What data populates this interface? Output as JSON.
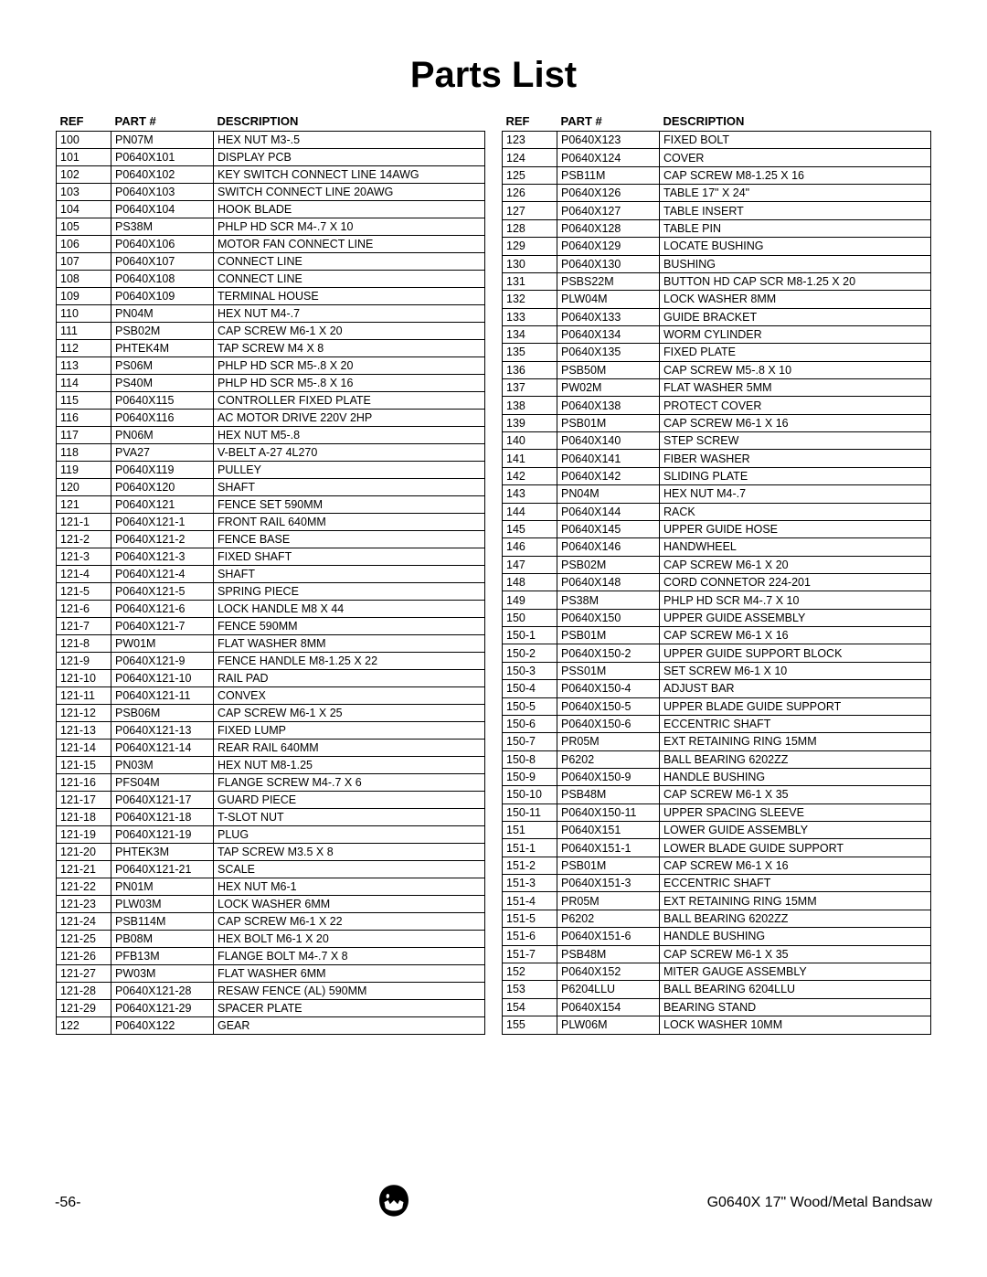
{
  "title": "Parts List",
  "headers": {
    "ref": "REF",
    "part": "PART #",
    "desc": "DESCRIPTION"
  },
  "left": [
    {
      "ref": "100",
      "part": "PN07M",
      "desc": "HEX NUT M3-.5"
    },
    {
      "ref": "101",
      "part": "P0640X101",
      "desc": "DISPLAY PCB"
    },
    {
      "ref": "102",
      "part": "P0640X102",
      "desc": "KEY SWITCH CONNECT LINE 14AWG"
    },
    {
      "ref": "103",
      "part": "P0640X103",
      "desc": "SWITCH CONNECT LINE 20AWG"
    },
    {
      "ref": "104",
      "part": "P0640X104",
      "desc": "HOOK BLADE"
    },
    {
      "ref": "105",
      "part": "PS38M",
      "desc": "PHLP HD SCR M4-.7 X 10"
    },
    {
      "ref": "106",
      "part": "P0640X106",
      "desc": "MOTOR FAN CONNECT LINE"
    },
    {
      "ref": "107",
      "part": "P0640X107",
      "desc": "CONNECT LINE"
    },
    {
      "ref": "108",
      "part": "P0640X108",
      "desc": "CONNECT LINE"
    },
    {
      "ref": "109",
      "part": "P0640X109",
      "desc": "TERMINAL HOUSE"
    },
    {
      "ref": "110",
      "part": "PN04M",
      "desc": "HEX NUT M4-.7"
    },
    {
      "ref": "111",
      "part": "PSB02M",
      "desc": "CAP SCREW M6-1 X 20"
    },
    {
      "ref": "112",
      "part": "PHTEK4M",
      "desc": "TAP SCREW M4 X 8"
    },
    {
      "ref": "113",
      "part": "PS06M",
      "desc": "PHLP HD SCR M5-.8 X 20"
    },
    {
      "ref": "114",
      "part": "PS40M",
      "desc": "PHLP HD SCR M5-.8 X 16"
    },
    {
      "ref": "115",
      "part": "P0640X115",
      "desc": "CONTROLLER FIXED PLATE"
    },
    {
      "ref": "116",
      "part": "P0640X116",
      "desc": "AC MOTOR DRIVE 220V 2HP"
    },
    {
      "ref": "117",
      "part": "PN06M",
      "desc": "HEX NUT M5-.8"
    },
    {
      "ref": "118",
      "part": "PVA27",
      "desc": "V-BELT A-27 4L270"
    },
    {
      "ref": "119",
      "part": "P0640X119",
      "desc": "PULLEY"
    },
    {
      "ref": "120",
      "part": "P0640X120",
      "desc": "SHAFT"
    },
    {
      "ref": "121",
      "part": "P0640X121",
      "desc": "FENCE SET 590MM"
    },
    {
      "ref": "121-1",
      "part": "P0640X121-1",
      "desc": "FRONT RAIL 640MM"
    },
    {
      "ref": "121-2",
      "part": "P0640X121-2",
      "desc": "FENCE BASE"
    },
    {
      "ref": "121-3",
      "part": "P0640X121-3",
      "desc": "FIXED SHAFT"
    },
    {
      "ref": "121-4",
      "part": "P0640X121-4",
      "desc": "SHAFT"
    },
    {
      "ref": "121-5",
      "part": "P0640X121-5",
      "desc": "SPRING PIECE"
    },
    {
      "ref": "121-6",
      "part": "P0640X121-6",
      "desc": "LOCK HANDLE M8 X 44"
    },
    {
      "ref": "121-7",
      "part": "P0640X121-7",
      "desc": "FENCE 590MM"
    },
    {
      "ref": "121-8",
      "part": "PW01M",
      "desc": "FLAT WASHER 8MM"
    },
    {
      "ref": "121-9",
      "part": "P0640X121-9",
      "desc": "FENCE HANDLE M8-1.25 X 22"
    },
    {
      "ref": "121-10",
      "part": "P0640X121-10",
      "desc": "RAIL PAD"
    },
    {
      "ref": "121-11",
      "part": "P0640X121-11",
      "desc": "CONVEX"
    },
    {
      "ref": "121-12",
      "part": "PSB06M",
      "desc": "CAP SCREW M6-1 X 25"
    },
    {
      "ref": "121-13",
      "part": "P0640X121-13",
      "desc": "FIXED LUMP"
    },
    {
      "ref": "121-14",
      "part": "P0640X121-14",
      "desc": "REAR RAIL 640MM"
    },
    {
      "ref": "121-15",
      "part": "PN03M",
      "desc": "HEX NUT M8-1.25"
    },
    {
      "ref": "121-16",
      "part": "PFS04M",
      "desc": "FLANGE SCREW M4-.7 X 6"
    },
    {
      "ref": "121-17",
      "part": "P0640X121-17",
      "desc": "GUARD PIECE"
    },
    {
      "ref": "121-18",
      "part": "P0640X121-18",
      "desc": "T-SLOT NUT"
    },
    {
      "ref": "121-19",
      "part": "P0640X121-19",
      "desc": "PLUG"
    },
    {
      "ref": "121-20",
      "part": "PHTEK3M",
      "desc": "TAP SCREW M3.5 X 8"
    },
    {
      "ref": "121-21",
      "part": "P0640X121-21",
      "desc": "SCALE"
    },
    {
      "ref": "121-22",
      "part": "PN01M",
      "desc": "HEX NUT M6-1"
    },
    {
      "ref": "121-23",
      "part": "PLW03M",
      "desc": "LOCK WASHER 6MM"
    },
    {
      "ref": "121-24",
      "part": "PSB114M",
      "desc": "CAP SCREW M6-1 X 22"
    },
    {
      "ref": "121-25",
      "part": "PB08M",
      "desc": "HEX BOLT M6-1 X 20"
    },
    {
      "ref": "121-26",
      "part": "PFB13M",
      "desc": "FLANGE BOLT M4-.7 X 8"
    },
    {
      "ref": "121-27",
      "part": "PW03M",
      "desc": "FLAT WASHER 6MM"
    },
    {
      "ref": "121-28",
      "part": "P0640X121-28",
      "desc": "RESAW FENCE (AL) 590MM"
    },
    {
      "ref": "121-29",
      "part": "P0640X121-29",
      "desc": "SPACER PLATE"
    },
    {
      "ref": "122",
      "part": "P0640X122",
      "desc": "GEAR"
    }
  ],
  "right": [
    {
      "ref": "123",
      "part": "P0640X123",
      "desc": "FIXED BOLT"
    },
    {
      "ref": "124",
      "part": "P0640X124",
      "desc": "COVER"
    },
    {
      "ref": "125",
      "part": "PSB11M",
      "desc": "CAP SCREW M8-1.25 X 16"
    },
    {
      "ref": "126",
      "part": "P0640X126",
      "desc": "TABLE 17\" X 24\""
    },
    {
      "ref": "127",
      "part": "P0640X127",
      "desc": "TABLE INSERT"
    },
    {
      "ref": "128",
      "part": "P0640X128",
      "desc": "TABLE PIN"
    },
    {
      "ref": "129",
      "part": "P0640X129",
      "desc": "LOCATE BUSHING"
    },
    {
      "ref": "130",
      "part": "P0640X130",
      "desc": "BUSHING"
    },
    {
      "ref": "131",
      "part": "PSBS22M",
      "desc": "BUTTON HD CAP SCR M8-1.25 X 20"
    },
    {
      "ref": "132",
      "part": "PLW04M",
      "desc": "LOCK WASHER 8MM"
    },
    {
      "ref": "133",
      "part": "P0640X133",
      "desc": "GUIDE BRACKET"
    },
    {
      "ref": "134",
      "part": "P0640X134",
      "desc": "WORM CYLINDER"
    },
    {
      "ref": "135",
      "part": "P0640X135",
      "desc": "FIXED PLATE"
    },
    {
      "ref": "136",
      "part": "PSB50M",
      "desc": "CAP SCREW M5-.8 X 10"
    },
    {
      "ref": "137",
      "part": "PW02M",
      "desc": "FLAT WASHER 5MM"
    },
    {
      "ref": "138",
      "part": "P0640X138",
      "desc": "PROTECT COVER"
    },
    {
      "ref": "139",
      "part": "PSB01M",
      "desc": "CAP SCREW M6-1 X 16"
    },
    {
      "ref": "140",
      "part": "P0640X140",
      "desc": "STEP SCREW"
    },
    {
      "ref": "141",
      "part": "P0640X141",
      "desc": "FIBER WASHER"
    },
    {
      "ref": "142",
      "part": "P0640X142",
      "desc": "SLIDING PLATE"
    },
    {
      "ref": "143",
      "part": "PN04M",
      "desc": "HEX NUT M4-.7"
    },
    {
      "ref": "144",
      "part": "P0640X144",
      "desc": "RACK"
    },
    {
      "ref": "145",
      "part": "P0640X145",
      "desc": "UPPER GUIDE HOSE"
    },
    {
      "ref": "146",
      "part": "P0640X146",
      "desc": "HANDWHEEL"
    },
    {
      "ref": "147",
      "part": "PSB02M",
      "desc": "CAP SCREW M6-1 X 20"
    },
    {
      "ref": "148",
      "part": "P0640X148",
      "desc": "CORD CONNETOR 224-201"
    },
    {
      "ref": "149",
      "part": "PS38M",
      "desc": "PHLP HD SCR M4-.7 X 10"
    },
    {
      "ref": "150",
      "part": "P0640X150",
      "desc": "UPPER GUIDE ASSEMBLY"
    },
    {
      "ref": "150-1",
      "part": "PSB01M",
      "desc": "CAP SCREW M6-1 X 16"
    },
    {
      "ref": "150-2",
      "part": "P0640X150-2",
      "desc": "UPPER GUIDE SUPPORT BLOCK"
    },
    {
      "ref": "150-3",
      "part": "PSS01M",
      "desc": "SET SCREW M6-1 X 10"
    },
    {
      "ref": "150-4",
      "part": "P0640X150-4",
      "desc": "ADJUST BAR"
    },
    {
      "ref": "150-5",
      "part": "P0640X150-5",
      "desc": "UPPER BLADE GUIDE SUPPORT"
    },
    {
      "ref": "150-6",
      "part": "P0640X150-6",
      "desc": "ECCENTRIC SHAFT"
    },
    {
      "ref": "150-7",
      "part": "PR05M",
      "desc": "EXT RETAINING RING 15MM"
    },
    {
      "ref": "150-8",
      "part": "P6202",
      "desc": "BALL BEARING 6202ZZ"
    },
    {
      "ref": "150-9",
      "part": "P0640X150-9",
      "desc": "HANDLE BUSHING"
    },
    {
      "ref": "150-10",
      "part": "PSB48M",
      "desc": "CAP SCREW M6-1 X 35"
    },
    {
      "ref": "150-11",
      "part": "P0640X150-11",
      "desc": "UPPER SPACING SLEEVE"
    },
    {
      "ref": "151",
      "part": "P0640X151",
      "desc": "LOWER GUIDE ASSEMBLY"
    },
    {
      "ref": "151-1",
      "part": "P0640X151-1",
      "desc": "LOWER BLADE GUIDE SUPPORT"
    },
    {
      "ref": "151-2",
      "part": "PSB01M",
      "desc": "CAP SCREW M6-1 X 16"
    },
    {
      "ref": "151-3",
      "part": "P0640X151-3",
      "desc": "ECCENTRIC SHAFT"
    },
    {
      "ref": "151-4",
      "part": "PR05M",
      "desc": "EXT RETAINING RING 15MM"
    },
    {
      "ref": "151-5",
      "part": "P6202",
      "desc": "BALL BEARING 6202ZZ"
    },
    {
      "ref": "151-6",
      "part": "P0640X151-6",
      "desc": "HANDLE BUSHING"
    },
    {
      "ref": "151-7",
      "part": "PSB48M",
      "desc": "CAP SCREW M6-1 X 35"
    },
    {
      "ref": "152",
      "part": "P0640X152",
      "desc": "MITER GAUGE ASSEMBLY"
    },
    {
      "ref": "153",
      "part": "P6204LLU",
      "desc": "BALL BEARING 6204LLU"
    },
    {
      "ref": "154",
      "part": "P0640X154",
      "desc": "BEARING STAND"
    },
    {
      "ref": "155",
      "part": "PLW06M",
      "desc": "LOCK WASHER 10MM"
    }
  ],
  "footer": {
    "page": "-56-",
    "model": "G0640X 17\" Wood/Metal Bandsaw"
  }
}
